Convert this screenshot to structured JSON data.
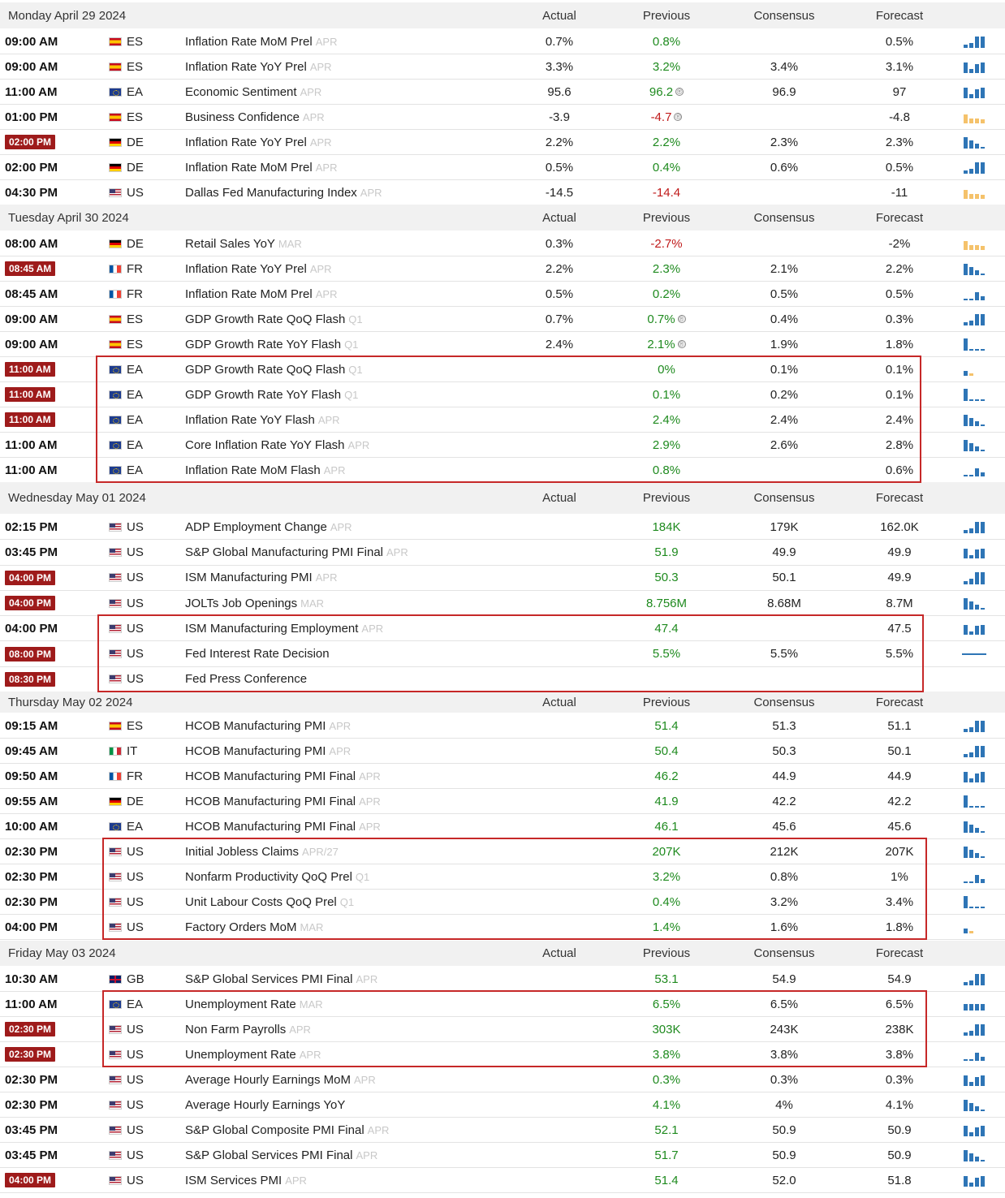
{
  "columns": {
    "actual": "Actual",
    "previous": "Previous",
    "consensus": "Consensus",
    "forecast": "Forecast"
  },
  "colors": {
    "highlight_time": "#9e1b1b",
    "positive": "#1e8a1e",
    "negative": "#c01a1a",
    "box": "#c62828",
    "spark_blue": "#2e75b6",
    "spark_orange": "#f5c26b"
  },
  "days": [
    {
      "label": "Monday April 29 2024",
      "events": [
        {
          "time": "09:00 AM",
          "hl": false,
          "flag": "es",
          "country": "ES",
          "name": "Inflation Rate MoM Prel",
          "ref": "APR",
          "actual": "0.7%",
          "previous": "0.8%",
          "prev_color": "green",
          "consensus": "",
          "forecast": "0.5%",
          "spark": "blue-up"
        },
        {
          "time": "09:00 AM",
          "hl": false,
          "flag": "es",
          "country": "ES",
          "name": "Inflation Rate YoY Prel",
          "ref": "APR",
          "actual": "3.3%",
          "previous": "3.2%",
          "prev_color": "green",
          "consensus": "3.4%",
          "forecast": "3.1%",
          "spark": "blue-mix"
        },
        {
          "time": "11:00 AM",
          "hl": false,
          "flag": "ea",
          "country": "EA",
          "name": "Economic Sentiment",
          "ref": "APR",
          "actual": "95.6",
          "previous": "96.2",
          "prev_rev": true,
          "prev_color": "green",
          "consensus": "96.9",
          "forecast": "97",
          "spark": "blue-mix"
        },
        {
          "time": "01:00 PM",
          "hl": false,
          "flag": "es",
          "country": "ES",
          "name": "Business Confidence",
          "ref": "APR",
          "actual": "-3.9",
          "previous": "-4.7",
          "prev_rev": true,
          "prev_color": "red",
          "consensus": "",
          "forecast": "-4.8",
          "spark": "orange"
        },
        {
          "time": "02:00 PM",
          "hl": true,
          "flag": "de",
          "country": "DE",
          "name": "Inflation Rate YoY Prel",
          "ref": "APR",
          "actual": "2.2%",
          "previous": "2.2%",
          "prev_color": "green",
          "consensus": "2.3%",
          "forecast": "2.3%",
          "spark": "blue-down"
        },
        {
          "time": "02:00 PM",
          "hl": false,
          "flag": "de",
          "country": "DE",
          "name": "Inflation Rate MoM Prel",
          "ref": "APR",
          "actual": "0.5%",
          "previous": "0.4%",
          "prev_color": "green",
          "consensus": "0.6%",
          "forecast": "0.5%",
          "spark": "blue-up"
        },
        {
          "time": "04:30 PM",
          "hl": false,
          "flag": "us",
          "country": "US",
          "name": "Dallas Fed Manufacturing Index",
          "ref": "APR",
          "actual": "-14.5",
          "previous": "-14.4",
          "prev_color": "red",
          "consensus": "",
          "forecast": "-11",
          "spark": "orange"
        }
      ]
    },
    {
      "label": "Tuesday April 30 2024",
      "events": [
        {
          "time": "08:00 AM",
          "hl": false,
          "flag": "de",
          "country": "DE",
          "name": "Retail Sales YoY",
          "ref": "MAR",
          "actual": "0.3%",
          "previous": "-2.7%",
          "prev_color": "red",
          "consensus": "",
          "forecast": "-2%",
          "spark": "orange"
        },
        {
          "time": "08:45 AM",
          "hl": true,
          "flag": "fr",
          "country": "FR",
          "name": "Inflation Rate YoY Prel",
          "ref": "APR",
          "actual": "2.2%",
          "previous": "2.3%",
          "prev_color": "green",
          "consensus": "2.1%",
          "forecast": "2.2%",
          "spark": "blue-down"
        },
        {
          "time": "08:45 AM",
          "hl": false,
          "flag": "fr",
          "country": "FR",
          "name": "Inflation Rate MoM Prel",
          "ref": "APR",
          "actual": "0.5%",
          "previous": "0.2%",
          "prev_color": "green",
          "consensus": "0.5%",
          "forecast": "0.5%",
          "spark": "blue-low"
        },
        {
          "time": "09:00 AM",
          "hl": false,
          "flag": "es",
          "country": "ES",
          "name": "GDP Growth Rate QoQ Flash",
          "ref": "Q1",
          "actual": "0.7%",
          "previous": "0.7%",
          "prev_rev": true,
          "prev_color": "green",
          "consensus": "0.4%",
          "forecast": "0.3%",
          "spark": "blue-up"
        },
        {
          "time": "09:00 AM",
          "hl": false,
          "flag": "es",
          "country": "ES",
          "name": "GDP Growth Rate YoY Flash",
          "ref": "Q1",
          "actual": "2.4%",
          "previous": "2.1%",
          "prev_rev": true,
          "prev_color": "green",
          "consensus": "1.9%",
          "forecast": "1.8%",
          "spark": "blue-first"
        },
        {
          "time": "11:00 AM",
          "hl": true,
          "flag": "ea",
          "country": "EA",
          "name": "GDP Growth Rate QoQ Flash",
          "ref": "Q1",
          "actual": "",
          "previous": "0%",
          "prev_color": "green",
          "consensus": "0.1%",
          "forecast": "0.1%",
          "spark": "tiny"
        },
        {
          "time": "11:00 AM",
          "hl": true,
          "flag": "ea",
          "country": "EA",
          "name": "GDP Growth Rate YoY Flash",
          "ref": "Q1",
          "actual": "",
          "previous": "0.1%",
          "prev_color": "green",
          "consensus": "0.2%",
          "forecast": "0.1%",
          "spark": "blue-first"
        },
        {
          "time": "11:00 AM",
          "hl": true,
          "flag": "ea",
          "country": "EA",
          "name": "Inflation Rate YoY Flash",
          "ref": "APR",
          "actual": "",
          "previous": "2.4%",
          "prev_color": "green",
          "consensus": "2.4%",
          "forecast": "2.4%",
          "spark": "blue-down"
        },
        {
          "time": "11:00 AM",
          "hl": false,
          "flag": "ea",
          "country": "EA",
          "name": "Core Inflation Rate YoY Flash",
          "ref": "APR",
          "actual": "",
          "previous": "2.9%",
          "prev_color": "green",
          "consensus": "2.6%",
          "forecast": "2.8%",
          "spark": "blue-down"
        },
        {
          "time": "11:00 AM",
          "hl": false,
          "flag": "ea",
          "country": "EA",
          "name": "Inflation Rate MoM Flash",
          "ref": "APR",
          "actual": "",
          "previous": "0.8%",
          "prev_color": "green",
          "consensus": "",
          "forecast": "0.6%",
          "spark": "blue-low"
        }
      ]
    },
    {
      "label": "Wednesday May 01 2024",
      "events": [
        {
          "time": "02:15 PM",
          "hl": false,
          "flag": "us",
          "country": "US",
          "name": "ADP Employment Change",
          "ref": "APR",
          "actual": "",
          "previous": "184K",
          "prev_color": "green",
          "consensus": "179K",
          "forecast": "162.0K",
          "spark": "blue-up"
        },
        {
          "time": "03:45 PM",
          "hl": false,
          "flag": "us",
          "country": "US",
          "name": "S&P Global Manufacturing PMI Final",
          "ref": "APR",
          "actual": "",
          "previous": "51.9",
          "prev_color": "green",
          "consensus": "49.9",
          "forecast": "49.9",
          "spark": "blue-mix"
        },
        {
          "time": "04:00 PM",
          "hl": true,
          "flag": "us",
          "country": "US",
          "name": "ISM Manufacturing PMI",
          "ref": "APR",
          "actual": "",
          "previous": "50.3",
          "prev_color": "green",
          "consensus": "50.1",
          "forecast": "49.9",
          "spark": "blue-up"
        },
        {
          "time": "04:00 PM",
          "hl": true,
          "flag": "us",
          "country": "US",
          "name": "JOLTs Job Openings",
          "ref": "MAR",
          "actual": "",
          "previous": "8.756M",
          "prev_color": "green",
          "consensus": "8.68M",
          "forecast": "8.7M",
          "spark": "blue-down"
        },
        {
          "time": "04:00 PM",
          "hl": false,
          "flag": "us",
          "country": "US",
          "name": "ISM Manufacturing Employment",
          "ref": "APR",
          "actual": "",
          "previous": "47.4",
          "prev_color": "green",
          "consensus": "",
          "forecast": "47.5",
          "spark": "blue-mix"
        },
        {
          "time": "08:00 PM",
          "hl": true,
          "flag": "us",
          "country": "US",
          "name": "Fed Interest Rate Decision",
          "ref": "",
          "actual": "",
          "previous": "5.5%",
          "prev_color": "green",
          "consensus": "5.5%",
          "forecast": "5.5%",
          "spark": "flat"
        },
        {
          "time": "08:30 PM",
          "hl": true,
          "flag": "us",
          "country": "US",
          "name": "Fed Press Conference",
          "ref": "",
          "actual": "",
          "previous": "",
          "prev_color": "green",
          "consensus": "",
          "forecast": "",
          "spark": "none"
        }
      ]
    },
    {
      "label": "Thursday May 02 2024",
      "events": [
        {
          "time": "09:15 AM",
          "hl": false,
          "flag": "es",
          "country": "ES",
          "name": "HCOB Manufacturing PMI",
          "ref": "APR",
          "actual": "",
          "previous": "51.4",
          "prev_color": "green",
          "consensus": "51.3",
          "forecast": "51.1",
          "spark": "blue-up"
        },
        {
          "time": "09:45 AM",
          "hl": false,
          "flag": "it",
          "country": "IT",
          "name": "HCOB Manufacturing PMI",
          "ref": "APR",
          "actual": "",
          "previous": "50.4",
          "prev_color": "green",
          "consensus": "50.3",
          "forecast": "50.1",
          "spark": "blue-up"
        },
        {
          "time": "09:50 AM",
          "hl": false,
          "flag": "fr",
          "country": "FR",
          "name": "HCOB Manufacturing PMI Final",
          "ref": "APR",
          "actual": "",
          "previous": "46.2",
          "prev_color": "green",
          "consensus": "44.9",
          "forecast": "44.9",
          "spark": "blue-mix"
        },
        {
          "time": "09:55 AM",
          "hl": false,
          "flag": "de",
          "country": "DE",
          "name": "HCOB Manufacturing PMI Final",
          "ref": "APR",
          "actual": "",
          "previous": "41.9",
          "prev_color": "green",
          "consensus": "42.2",
          "forecast": "42.2",
          "spark": "blue-first"
        },
        {
          "time": "10:00 AM",
          "hl": false,
          "flag": "ea",
          "country": "EA",
          "name": "HCOB Manufacturing PMI Final",
          "ref": "APR",
          "actual": "",
          "previous": "46.1",
          "prev_color": "green",
          "consensus": "45.6",
          "forecast": "45.6",
          "spark": "blue-down"
        },
        {
          "time": "02:30 PM",
          "hl": false,
          "flag": "us",
          "country": "US",
          "name": "Initial Jobless Claims",
          "ref": "APR/27",
          "actual": "",
          "previous": "207K",
          "prev_color": "green",
          "consensus": "212K",
          "forecast": "207K",
          "spark": "blue-down"
        },
        {
          "time": "02:30 PM",
          "hl": false,
          "flag": "us",
          "country": "US",
          "name": "Nonfarm Productivity QoQ Prel",
          "ref": "Q1",
          "actual": "",
          "previous": "3.2%",
          "prev_color": "green",
          "consensus": "0.8%",
          "forecast": "1%",
          "spark": "blue-low"
        },
        {
          "time": "02:30 PM",
          "hl": false,
          "flag": "us",
          "country": "US",
          "name": "Unit Labour Costs QoQ Prel",
          "ref": "Q1",
          "actual": "",
          "previous": "0.4%",
          "prev_color": "green",
          "consensus": "3.2%",
          "forecast": "3.4%",
          "spark": "blue-first"
        },
        {
          "time": "04:00 PM",
          "hl": false,
          "flag": "us",
          "country": "US",
          "name": "Factory Orders MoM",
          "ref": "MAR",
          "actual": "",
          "previous": "1.4%",
          "prev_color": "green",
          "consensus": "1.6%",
          "forecast": "1.8%",
          "spark": "tiny"
        }
      ]
    },
    {
      "label": "Friday May 03 2024",
      "events": [
        {
          "time": "10:30 AM",
          "hl": false,
          "flag": "gb",
          "country": "GB",
          "name": "S&P Global Services PMI Final",
          "ref": "APR",
          "actual": "",
          "previous": "53.1",
          "prev_color": "green",
          "consensus": "54.9",
          "forecast": "54.9",
          "spark": "blue-up"
        },
        {
          "time": "11:00 AM",
          "hl": false,
          "flag": "ea",
          "country": "EA",
          "name": "Unemployment Rate",
          "ref": "MAR",
          "actual": "",
          "previous": "6.5%",
          "prev_color": "green",
          "consensus": "6.5%",
          "forecast": "6.5%",
          "spark": "blue-even"
        },
        {
          "time": "02:30 PM",
          "hl": true,
          "flag": "us",
          "country": "US",
          "name": "Non Farm Payrolls",
          "ref": "APR",
          "actual": "",
          "previous": "303K",
          "prev_color": "green",
          "consensus": "243K",
          "forecast": "238K",
          "spark": "blue-up"
        },
        {
          "time": "02:30 PM",
          "hl": true,
          "flag": "us",
          "country": "US",
          "name": "Unemployment Rate",
          "ref": "APR",
          "actual": "",
          "previous": "3.8%",
          "prev_color": "green",
          "consensus": "3.8%",
          "forecast": "3.8%",
          "spark": "blue-low"
        },
        {
          "time": "02:30 PM",
          "hl": false,
          "flag": "us",
          "country": "US",
          "name": "Average Hourly Earnings MoM",
          "ref": "APR",
          "actual": "",
          "previous": "0.3%",
          "prev_color": "green",
          "consensus": "0.3%",
          "forecast": "0.3%",
          "spark": "blue-mix"
        },
        {
          "time": "02:30 PM",
          "hl": false,
          "flag": "us",
          "country": "US",
          "name": "Average Hourly Earnings YoY",
          "ref": "",
          "actual": "",
          "previous": "4.1%",
          "prev_color": "green",
          "consensus": "4%",
          "forecast": "4.1%",
          "spark": "blue-down"
        },
        {
          "time": "03:45 PM",
          "hl": false,
          "flag": "us",
          "country": "US",
          "name": "S&P Global Composite PMI Final",
          "ref": "APR",
          "actual": "",
          "previous": "52.1",
          "prev_color": "green",
          "consensus": "50.9",
          "forecast": "50.9",
          "spark": "blue-mix"
        },
        {
          "time": "03:45 PM",
          "hl": false,
          "flag": "us",
          "country": "US",
          "name": "S&P Global Services PMI Final",
          "ref": "APR",
          "actual": "",
          "previous": "51.7",
          "prev_color": "green",
          "consensus": "50.9",
          "forecast": "50.9",
          "spark": "blue-down"
        },
        {
          "time": "04:00 PM",
          "hl": true,
          "flag": "us",
          "country": "US",
          "name": "ISM Services PMI",
          "ref": "APR",
          "actual": "",
          "previous": "51.4",
          "prev_color": "green",
          "consensus": "52.0",
          "forecast": "51.8",
          "spark": "blue-mix"
        }
      ]
    }
  ]
}
